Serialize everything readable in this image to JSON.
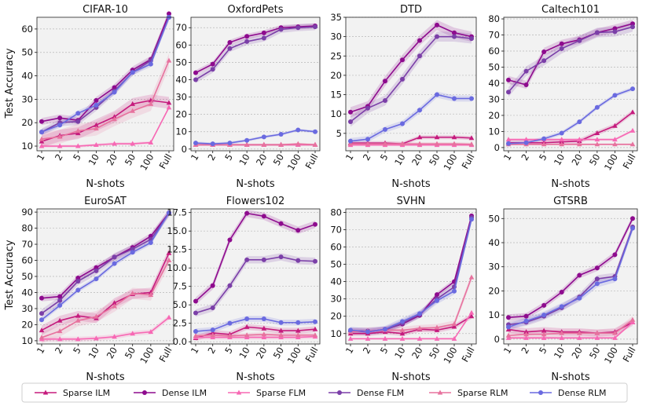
{
  "figure": {
    "ylabel": "Test Accuracy",
    "xlabel": "N-shots"
  },
  "legend": [
    {
      "key": "sparse_ilm",
      "label": "Sparse ILM",
      "color": "#c51b7d",
      "marker": "triangle"
    },
    {
      "key": "dense_ilm",
      "label": "Dense ILM",
      "color": "#8e0b8e",
      "marker": "circle"
    },
    {
      "key": "sparse_flm",
      "label": "Sparse FLM",
      "color": "#f768b4",
      "marker": "triangle"
    },
    {
      "key": "dense_flm",
      "label": "Dense FLM",
      "color": "#7b3fa8",
      "marker": "circle"
    },
    {
      "key": "sparse_rlm",
      "label": "Sparse RLM",
      "color": "#e7729e",
      "marker": "triangle"
    },
    {
      "key": "dense_rlm",
      "label": "Dense RLM",
      "color": "#6a6ae0",
      "marker": "circle"
    }
  ],
  "chart_data": [
    {
      "type": "line",
      "title": "CIFAR-10",
      "categories": [
        "1",
        "2",
        "5",
        "10",
        "20",
        "50",
        "100",
        "Full"
      ],
      "ylim": [
        8,
        65
      ],
      "yticks": [
        10,
        20,
        30,
        40,
        50,
        60
      ],
      "series": [
        {
          "key": "sparse_ilm",
          "values": [
            12,
            14.5,
            15.5,
            19,
            22.5,
            28,
            29.5,
            28.5
          ],
          "band": 2.5
        },
        {
          "key": "dense_ilm",
          "values": [
            20.5,
            22,
            21,
            29.5,
            35,
            42.5,
            47,
            66.5
          ],
          "band": 1.5
        },
        {
          "key": "sparse_flm",
          "values": [
            10,
            10,
            10,
            10.5,
            11,
            11,
            11.5,
            26.5
          ],
          "band": 0.6
        },
        {
          "key": "dense_flm",
          "values": [
            16,
            20,
            20.5,
            26.5,
            33.5,
            41.5,
            46.5,
            65
          ],
          "band": 1.5
        },
        {
          "key": "sparse_rlm",
          "values": [
            13,
            14,
            16.5,
            17.5,
            21.5,
            25,
            28,
            46.5
          ],
          "band": 3
        },
        {
          "key": "dense_rlm",
          "values": [
            16,
            19,
            24,
            27.5,
            33,
            41.5,
            45,
            65
          ],
          "band": 1.2
        }
      ]
    },
    {
      "type": "line",
      "title": "OxfordPets",
      "categories": [
        "1",
        "2",
        "5",
        "10",
        "20",
        "50",
        "100",
        "Full"
      ],
      "ylim": [
        -1,
        76
      ],
      "yticks": [
        0,
        10,
        20,
        30,
        40,
        50,
        60,
        70
      ],
      "series": [
        {
          "key": "sparse_ilm",
          "values": [
            2.5,
            2.5,
            2.5,
            2.5,
            2.5,
            2.5,
            2.5,
            2.5
          ],
          "band": 0.6
        },
        {
          "key": "dense_ilm",
          "values": [
            44,
            49,
            61.5,
            65,
            67,
            70,
            70.5,
            71
          ],
          "band": 1.5
        },
        {
          "key": "sparse_flm",
          "values": [
            2.5,
            2.5,
            2.5,
            2.5,
            2.5,
            2.5,
            2.5,
            2.5
          ],
          "band": 0.5
        },
        {
          "key": "dense_flm",
          "values": [
            40,
            46,
            58,
            62,
            64,
            69,
            70,
            70.5
          ],
          "band": 2
        },
        {
          "key": "sparse_rlm",
          "values": [
            2.5,
            2.5,
            2.5,
            2.5,
            2.5,
            2.5,
            3,
            2.5
          ],
          "band": 0.6
        },
        {
          "key": "dense_rlm",
          "values": [
            3.5,
            3,
            3.5,
            5,
            7,
            8.5,
            11,
            10
          ],
          "band": 0.8
        }
      ]
    },
    {
      "type": "line",
      "title": "DTD",
      "categories": [
        "1",
        "2",
        "5",
        "10",
        "20",
        "50",
        "100",
        "Full"
      ],
      "ylim": [
        0.5,
        35
      ],
      "yticks": [
        5,
        10,
        15,
        20,
        25,
        30,
        35
      ],
      "series": [
        {
          "key": "sparse_ilm",
          "values": [
            2.5,
            2.5,
            2.5,
            2.3,
            4,
            4,
            4,
            3.8
          ],
          "band": 0.5
        },
        {
          "key": "dense_ilm",
          "values": [
            10.5,
            12,
            18.5,
            24,
            29,
            33,
            31,
            30
          ],
          "band": 1.3
        },
        {
          "key": "sparse_flm",
          "values": [
            2,
            2,
            2,
            2,
            2,
            2,
            2,
            2
          ],
          "band": 0.3
        },
        {
          "key": "dense_flm",
          "values": [
            8,
            11.5,
            13.5,
            19,
            25,
            30,
            30,
            29.5
          ],
          "band": 1.3
        },
        {
          "key": "sparse_rlm",
          "values": [
            2.3,
            2.3,
            2.3,
            2.3,
            2.3,
            2.3,
            2.3,
            2.2
          ],
          "band": 0.4
        },
        {
          "key": "dense_rlm",
          "values": [
            3,
            3.5,
            6,
            7.5,
            11,
            15,
            14,
            14
          ],
          "band": 0.8
        }
      ]
    },
    {
      "type": "line",
      "title": "Caltech101",
      "categories": [
        "1",
        "2",
        "5",
        "10",
        "20",
        "50",
        "100",
        "Full"
      ],
      "ylim": [
        -2,
        81
      ],
      "yticks": [
        0,
        10,
        20,
        30,
        40,
        50,
        60,
        70,
        80
      ],
      "series": [
        {
          "key": "sparse_ilm",
          "values": [
            3,
            3,
            3,
            3.5,
            4,
            9,
            13.5,
            22
          ],
          "band": 1.5
        },
        {
          "key": "dense_ilm",
          "values": [
            42,
            39,
            59.5,
            64.5,
            67,
            71.5,
            74,
            77
          ],
          "band": 2.5
        },
        {
          "key": "sparse_flm",
          "values": [
            5,
            5,
            5,
            5,
            5,
            5,
            5,
            10.5
          ],
          "band": 0.8
        },
        {
          "key": "dense_flm",
          "values": [
            34.5,
            47.5,
            54,
            61.5,
            66.5,
            71.5,
            72,
            75
          ],
          "band": 3
        },
        {
          "key": "sparse_rlm",
          "values": [
            2,
            2,
            2,
            2,
            2,
            2,
            2,
            2
          ],
          "band": 0.6
        },
        {
          "key": "dense_rlm",
          "values": [
            2.5,
            3,
            5.5,
            9,
            16,
            25,
            32.5,
            36.5
          ],
          "band": 1.2
        }
      ]
    },
    {
      "type": "line",
      "title": "EuroSAT",
      "categories": [
        "1",
        "2",
        "5",
        "10",
        "20",
        "50",
        "100",
        "Full"
      ],
      "ylim": [
        8,
        92
      ],
      "yticks": [
        10,
        20,
        30,
        40,
        50,
        60,
        70,
        80,
        90
      ],
      "series": [
        {
          "key": "sparse_ilm",
          "values": [
            16.5,
            22.5,
            25.5,
            24,
            33.5,
            39,
            40,
            64.5
          ],
          "band": 3
        },
        {
          "key": "dense_ilm",
          "values": [
            36.5,
            37.5,
            49,
            55.5,
            62,
            68,
            75,
            89.5
          ],
          "band": 2
        },
        {
          "key": "sparse_flm",
          "values": [
            11,
            11,
            11,
            11.5,
            12.5,
            14.5,
            15.5,
            24.5
          ],
          "band": 1.5
        },
        {
          "key": "dense_flm",
          "values": [
            27,
            35,
            47,
            53.5,
            62,
            67,
            73,
            89.5
          ],
          "band": 2.5
        },
        {
          "key": "sparse_rlm",
          "values": [
            12,
            16,
            22.5,
            25,
            31.5,
            39.5,
            38.5,
            60
          ],
          "band": 3.5
        },
        {
          "key": "dense_rlm",
          "values": [
            23,
            32,
            41.5,
            48.5,
            58,
            65,
            71,
            89.5
          ],
          "band": 1.5
        }
      ]
    },
    {
      "type": "line",
      "title": "Flowers102",
      "categories": [
        "1",
        "2",
        "5",
        "10",
        "20",
        "50",
        "100",
        "Full"
      ],
      "ylim": [
        -0.3,
        18
      ],
      "yticks": [
        0.0,
        2.5,
        5.0,
        7.5,
        10.0,
        12.5,
        15.0,
        17.5
      ],
      "series": [
        {
          "key": "sparse_ilm",
          "values": [
            0.5,
            1.2,
            1,
            2,
            1.8,
            1.5,
            1.5,
            1.7
          ],
          "band": 0.4
        },
        {
          "key": "dense_ilm",
          "values": [
            5.5,
            7.6,
            13.8,
            17.4,
            17,
            16,
            15.1,
            15.9
          ],
          "band": 0.5
        },
        {
          "key": "sparse_flm",
          "values": [
            0.6,
            0.6,
            0.6,
            0.6,
            0.6,
            0.6,
            0.6,
            0.7
          ],
          "band": 0.3
        },
        {
          "key": "dense_flm",
          "values": [
            3.9,
            4.6,
            7.6,
            11.1,
            11.1,
            11.5,
            11,
            10.9
          ],
          "band": 0.5
        },
        {
          "key": "sparse_rlm",
          "values": [
            0.8,
            0.9,
            0.8,
            0.9,
            1,
            0.9,
            0.9,
            0.9
          ],
          "band": 0.3
        },
        {
          "key": "dense_rlm",
          "values": [
            1.4,
            1.6,
            2.5,
            3.1,
            3.1,
            2.6,
            2.6,
            2.7
          ],
          "band": 0.4
        }
      ]
    },
    {
      "type": "line",
      "title": "SVHN",
      "categories": [
        "1",
        "2",
        "5",
        "10",
        "20",
        "50",
        "100",
        "Full"
      ],
      "ylim": [
        4,
        82
      ],
      "yticks": [
        10,
        20,
        30,
        40,
        50,
        60,
        70,
        80
      ],
      "series": [
        {
          "key": "sparse_ilm",
          "values": [
            10,
            10,
            11,
            10,
            12.5,
            12,
            14,
            20
          ],
          "band": 1.5
        },
        {
          "key": "dense_ilm",
          "values": [
            11.5,
            11,
            12.5,
            15.5,
            20.5,
            32.5,
            40,
            78
          ],
          "band": 1.5
        },
        {
          "key": "sparse_flm",
          "values": [
            7,
            7,
            7,
            7,
            7,
            7,
            7,
            22
          ],
          "band": 0.6
        },
        {
          "key": "dense_flm",
          "values": [
            11.5,
            11.5,
            12,
            16,
            21,
            30,
            37,
            77
          ],
          "band": 2
        },
        {
          "key": "sparse_rlm",
          "values": [
            11,
            11.5,
            12,
            12,
            13,
            13.5,
            15.5,
            42.5
          ],
          "band": 2
        },
        {
          "key": "dense_rlm",
          "values": [
            12,
            11,
            12.5,
            17,
            21.5,
            29,
            34.5,
            76
          ],
          "band": 2
        }
      ]
    },
    {
      "type": "line",
      "title": "GTSRB",
      "categories": [
        "1",
        "2",
        "5",
        "10",
        "20",
        "50",
        "100",
        "Full"
      ],
      "ylim": [
        -2,
        54
      ],
      "yticks": [
        0,
        10,
        20,
        30,
        40,
        50
      ],
      "series": [
        {
          "key": "sparse_ilm",
          "values": [
            4,
            3,
            3.5,
            3,
            3,
            2.5,
            3,
            7
          ],
          "band": 1.5
        },
        {
          "key": "dense_ilm",
          "values": [
            9,
            9.5,
            14,
            19.5,
            26.5,
            29.5,
            35,
            50
          ],
          "band": 1.3
        },
        {
          "key": "sparse_flm",
          "values": [
            0.5,
            0.5,
            0.5,
            0.5,
            0.5,
            0.5,
            0.5,
            7
          ],
          "band": 0.5
        },
        {
          "key": "dense_flm",
          "values": [
            6,
            7,
            9.5,
            13,
            17.5,
            25,
            26,
            46.5
          ],
          "band": 1.5
        },
        {
          "key": "sparse_rlm",
          "values": [
            1.5,
            2,
            2,
            2.5,
            2.5,
            2.5,
            2.5,
            8
          ],
          "band": 1.5
        },
        {
          "key": "dense_rlm",
          "values": [
            5,
            7.5,
            10,
            13.5,
            17,
            23,
            25,
            46
          ],
          "band": 1.5
        }
      ]
    }
  ]
}
